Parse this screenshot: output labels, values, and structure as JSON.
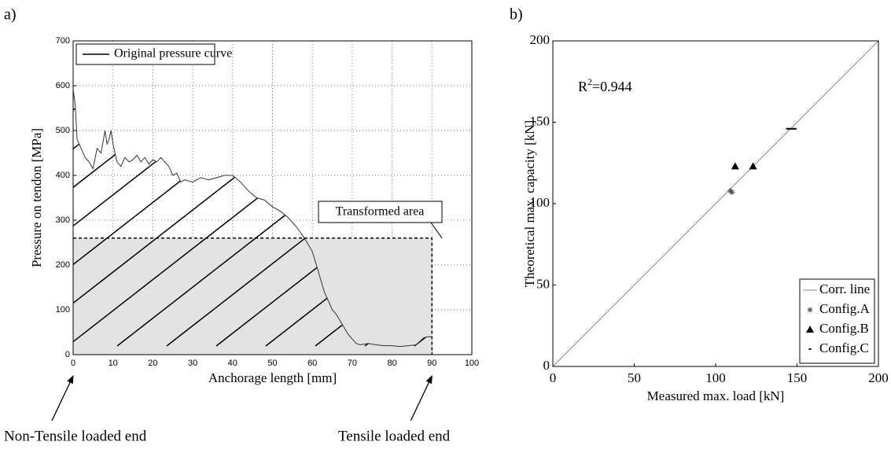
{
  "chart_data": [
    {
      "type": "line",
      "label": "a)",
      "xlabel": "Anchorage length [mm]",
      "ylabel": "Pressure on tendon [MPa]",
      "xlim": [
        0,
        100
      ],
      "ylim": [
        0,
        700
      ],
      "xticks": [
        0,
        10,
        20,
        30,
        40,
        50,
        60,
        70,
        80,
        90,
        100
      ],
      "yticks": [
        0,
        100,
        200,
        300,
        400,
        500,
        600,
        700
      ],
      "grid": true,
      "legend": "upper left",
      "series": [
        {
          "name": "Original pressure curve",
          "color": "#333333",
          "x": [
            0,
            0.5,
            1,
            2,
            3,
            4,
            5,
            6,
            7,
            8,
            8.5,
            9,
            9.5,
            10,
            11,
            12,
            13,
            14,
            15,
            16,
            17,
            18,
            19,
            20,
            21,
            22,
            23,
            24,
            25,
            26,
            27,
            28,
            30,
            32,
            34,
            36,
            38,
            40,
            42,
            44,
            46,
            48,
            50,
            52,
            54,
            56,
            58,
            60,
            61,
            62,
            63,
            64,
            65,
            66,
            67,
            68,
            69,
            70,
            71,
            72,
            74,
            76,
            78,
            80,
            82,
            84,
            86,
            88,
            89,
            90
          ],
          "values": [
            590,
            560,
            480,
            460,
            440,
            430,
            415,
            460,
            450,
            500,
            470,
            480,
            500,
            470,
            430,
            420,
            440,
            430,
            435,
            445,
            430,
            440,
            425,
            435,
            430,
            440,
            430,
            420,
            400,
            405,
            385,
            390,
            385,
            395,
            390,
            395,
            400,
            400,
            385,
            365,
            350,
            345,
            330,
            320,
            305,
            285,
            260,
            230,
            200,
            170,
            140,
            120,
            100,
            90,
            75,
            60,
            45,
            35,
            25,
            22,
            25,
            22,
            20,
            20,
            18,
            20,
            22,
            38,
            40,
            40
          ]
        }
      ],
      "area": {
        "label": "Transformed area",
        "x": [
          0,
          90
        ],
        "value": 260,
        "color": "#e3e3e3"
      },
      "annotations": [
        {
          "text": "Non-Tensile loaded end",
          "x": 0
        },
        {
          "text": "Tensile loaded end",
          "x": 90
        }
      ]
    },
    {
      "type": "scatter",
      "label": "b)",
      "xlabel": "Measured max. load [kN]",
      "ylabel": "Theoretical max. capacity [kN]",
      "xlim": [
        0,
        200
      ],
      "ylim": [
        0,
        200
      ],
      "xticks": [
        0,
        50,
        100,
        150,
        200
      ],
      "yticks": [
        0,
        50,
        100,
        150,
        200
      ],
      "grid": false,
      "legend": "lower right",
      "annotation": [
        "R",
        "2",
        "=0.944"
      ],
      "series": [
        {
          "name": "Corr. line",
          "marker": "line",
          "color": "#888888",
          "x": [
            0,
            200
          ],
          "values": [
            0,
            200
          ]
        },
        {
          "name": "Config.A",
          "marker": "asterisk",
          "color": "#555555",
          "x": [
            109,
            110
          ],
          "values": [
            108,
            107
          ]
        },
        {
          "name": "Config.B",
          "marker": "triangle",
          "color": "#000000",
          "x": [
            112,
            123
          ],
          "values": [
            123,
            123
          ]
        },
        {
          "name": "Config.C",
          "marker": "dot",
          "color": "#000000",
          "x": [
            144,
            145,
            146,
            147,
            148,
            149
          ],
          "values": [
            146,
            146,
            146,
            146,
            146,
            146
          ]
        }
      ]
    }
  ]
}
